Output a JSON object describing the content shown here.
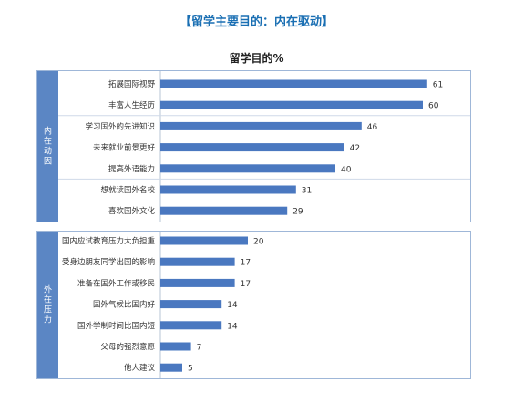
{
  "header": {
    "title": "【留学主要目的：内在驱动】"
  },
  "chart_data": {
    "type": "bar",
    "orientation": "horizontal",
    "title": "留学目的%",
    "bar_color": "#4a78c0",
    "groups": [
      {
        "name": "内在动因",
        "items": [
          {
            "category": "拓展国际视野",
            "value": 61
          },
          {
            "category": "丰富人生经历",
            "value": 60
          },
          {
            "category": "学习国外的先进知识",
            "value": 46
          },
          {
            "category": "未来就业前景更好",
            "value": 42
          },
          {
            "category": "提高外语能力",
            "value": 40
          },
          {
            "category": "想就读国外名校",
            "value": 31
          },
          {
            "category": "喜欢国外文化",
            "value": 29
          }
        ]
      },
      {
        "name": "外在压力",
        "items": [
          {
            "category": "国内应试教育压力大负担重",
            "value": 20
          },
          {
            "category": "受身边朋友同学出国的影响",
            "value": 17
          },
          {
            "category": "准备在国外工作或移民",
            "value": 17
          },
          {
            "category": "国外气候比国内好",
            "value": 14
          },
          {
            "category": "国外学制时间比国内短",
            "value": 14
          },
          {
            "category": "父母的强烈意愿",
            "value": 7
          },
          {
            "category": "他人建议",
            "value": 5
          }
        ]
      }
    ]
  }
}
